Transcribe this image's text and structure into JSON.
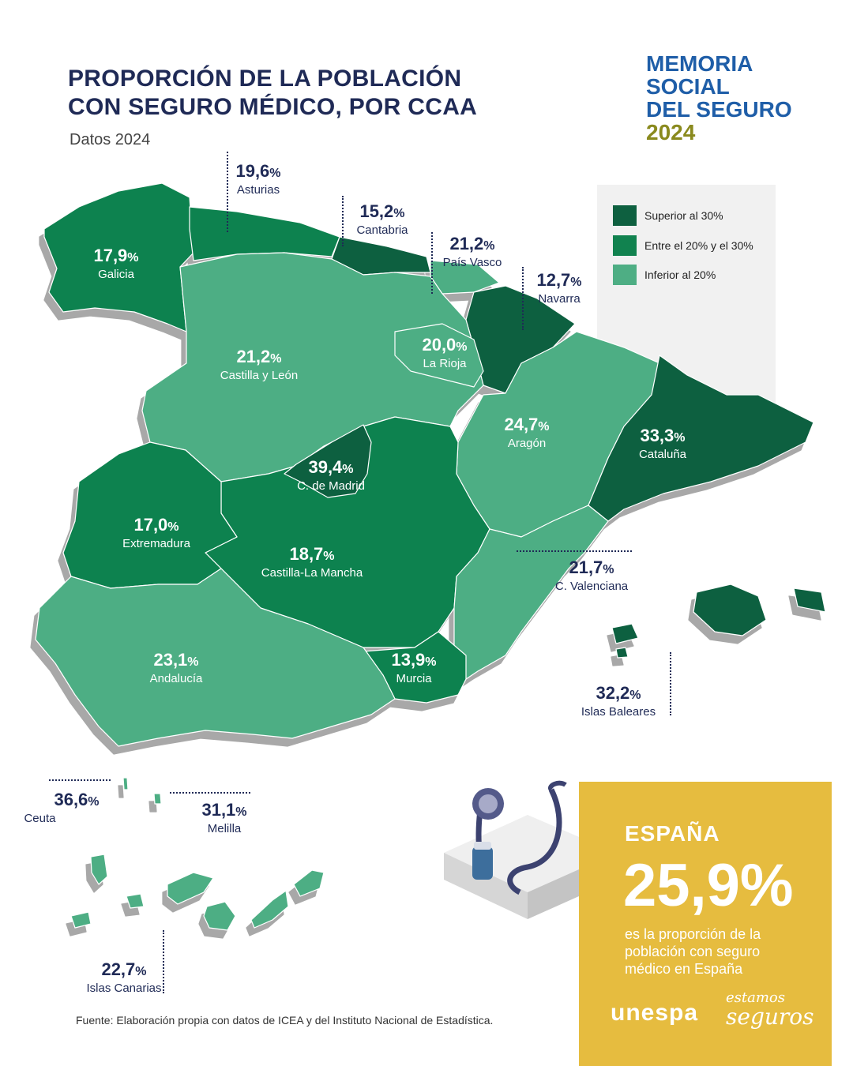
{
  "title_line1": "PROPORCIÓN DE LA POBLACIÓN",
  "title_line2": "CON SEGURO MÉDICO, POR CCAA",
  "subtitle": "Datos 2024",
  "brand": {
    "line1": "MEMORIA",
    "line2": "SOCIAL",
    "line3": "DEL SEGURO",
    "year": "2024"
  },
  "legend": [
    {
      "label": "Superior al 30%",
      "color": "#0e6040"
    },
    {
      "label": "Entre el 20% y el 30%",
      "color": "#11824f"
    },
    {
      "label": "Inferior al 20%",
      "color": "#4eae84"
    }
  ],
  "regions": {
    "asturias": {
      "value": "19,6",
      "unit": "%",
      "name": "Asturias"
    },
    "cantabria": {
      "value": "15,2",
      "unit": "%",
      "name": "Cantabria"
    },
    "pais_vasco": {
      "value": "21,2",
      "unit": "%",
      "name": "País Vasco"
    },
    "navarra": {
      "value": "12,7",
      "unit": "%",
      "name": "Navarra"
    },
    "galicia": {
      "value": "17,9",
      "unit": "%",
      "name": "Galicia"
    },
    "castilla_leon": {
      "value": "21,2",
      "unit": "%",
      "name": "Castilla y León"
    },
    "la_rioja": {
      "value": "20,0",
      "unit": "%",
      "name": "La Rioja"
    },
    "aragon": {
      "value": "24,7",
      "unit": "%",
      "name": "Aragón"
    },
    "cataluna": {
      "value": "33,3",
      "unit": "%",
      "name": "Cataluña"
    },
    "madrid": {
      "value": "39,4",
      "unit": "%",
      "name": "C. de Madrid"
    },
    "extremadura": {
      "value": "17,0",
      "unit": "%",
      "name": "Extremadura"
    },
    "castilla_la_mancha": {
      "value": "18,7",
      "unit": "%",
      "name": "Castilla-La Mancha"
    },
    "valenciana": {
      "value": "21,7",
      "unit": "%",
      "name": "C. Valenciana"
    },
    "andalucia": {
      "value": "23,1",
      "unit": "%",
      "name": "Andalucía"
    },
    "murcia": {
      "value": "13,9",
      "unit": "%",
      "name": "Murcia"
    },
    "baleares": {
      "value": "32,2",
      "unit": "%",
      "name": "Islas Baleares"
    },
    "ceuta": {
      "value": "36,6",
      "unit": "%",
      "name": "Ceuta"
    },
    "melilla": {
      "value": "31,1",
      "unit": "%",
      "name": "Melilla"
    },
    "canarias": {
      "value": "22,7",
      "unit": "%",
      "name": "Islas Canarias"
    }
  },
  "spain": {
    "label": "ESPAÑA",
    "value": "25,9%",
    "text": "es la proporción de la población con seguro médico en España"
  },
  "logos": {
    "unespa": "unespa",
    "estamos_line1": "estamos",
    "estamos_line2": "seguros"
  },
  "source": "Fuente: Elaboración propia con datos de ICEA y del Instituto Nacional de Estadística."
}
